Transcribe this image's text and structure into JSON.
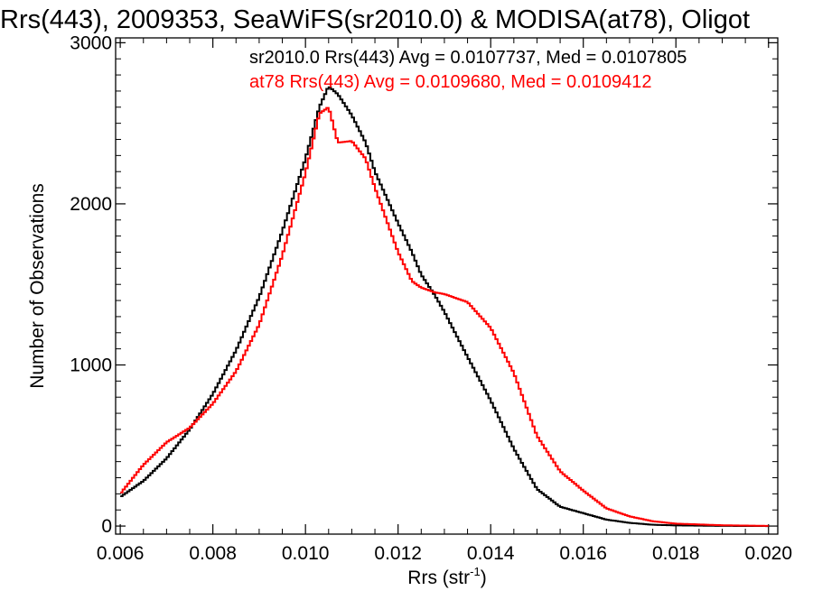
{
  "chart_data": {
    "type": "line",
    "title": "Rrs(443), 2009353, SeaWiFS(sr2010.0) & MODISA(at78), Oligot",
    "xlabel": "Rrs (str",
    "xlabel_sup": "-1",
    "xlabel_end": ")",
    "ylabel": "Number of Observations",
    "xlim": [
      0.0059,
      0.0202
    ],
    "ylim": [
      -50,
      3030
    ],
    "xticks": [
      0.006,
      0.008,
      0.01,
      0.012,
      0.014,
      0.016,
      0.018,
      0.02
    ],
    "xtick_labels": [
      "0.006",
      "0.008",
      "0.010",
      "0.012",
      "0.014",
      "0.016",
      "0.018",
      "0.020"
    ],
    "yticks": [
      0,
      1000,
      2000,
      3000
    ],
    "ytick_labels": [
      "0",
      "1000",
      "2000",
      "3000"
    ],
    "grid": false,
    "legend_position": "top-right",
    "x": [
      0.006,
      0.0065,
      0.007,
      0.0075,
      0.008,
      0.0085,
      0.009,
      0.0095,
      0.01,
      0.0103,
      0.0105,
      0.0107,
      0.011,
      0.0113,
      0.0115,
      0.012,
      0.0123,
      0.0125,
      0.0128,
      0.013,
      0.0135,
      0.014,
      0.0145,
      0.015,
      0.0155,
      0.016,
      0.0165,
      0.017,
      0.0175,
      0.018,
      0.019,
      0.02
    ],
    "series": [
      {
        "name": "sr2010.0",
        "stats_text": "sr2010.0 Rrs(443) Avg = 0.0107737, Med = 0.0107805",
        "color": "#000000",
        "values": [
          180,
          280,
          420,
          600,
          820,
          1090,
          1420,
          1830,
          2280,
          2600,
          2730,
          2680,
          2550,
          2380,
          2200,
          1880,
          1700,
          1560,
          1430,
          1330,
          1050,
          780,
          480,
          230,
          120,
          80,
          40,
          20,
          8,
          4,
          1,
          0
        ]
      },
      {
        "name": "at78",
        "stats_text": "at78 Rrs(443) Avg = 0.0109680, Med = 0.0109412",
        "color": "#ff0000",
        "values": [
          200,
          380,
          520,
          610,
          760,
          960,
          1250,
          1680,
          2190,
          2560,
          2600,
          2380,
          2390,
          2280,
          2100,
          1700,
          1520,
          1480,
          1450,
          1440,
          1390,
          1230,
          950,
          560,
          340,
          220,
          110,
          60,
          30,
          15,
          5,
          1
        ]
      }
    ]
  }
}
